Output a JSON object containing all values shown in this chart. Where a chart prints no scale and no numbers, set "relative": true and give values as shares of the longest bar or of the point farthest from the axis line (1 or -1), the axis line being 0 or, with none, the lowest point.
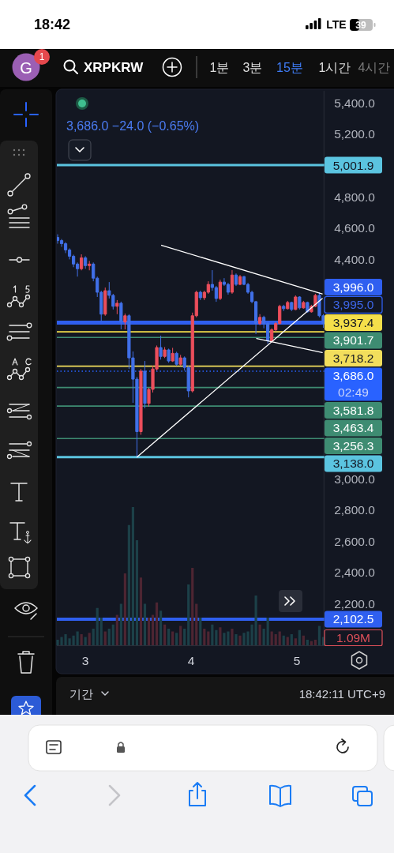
{
  "chart_data": [
    {
      "type": "candlestick",
      "title": "XRPKRW",
      "subtitle": "3,686.0 −24.0 (−0.65%)",
      "x": [
        2.7375,
        2.775,
        2.8125,
        2.85,
        2.8875,
        2.925,
        2.9625,
        3.0,
        3.0375,
        3.075,
        3.1125,
        3.15,
        3.1875,
        3.225,
        3.2625,
        3.3,
        3.3375,
        3.375,
        3.4125,
        3.45,
        3.4875,
        3.525,
        3.5625,
        3.6,
        3.6375,
        3.675,
        3.7125,
        3.75,
        3.7875,
        3.825,
        3.8625,
        3.9,
        3.9375,
        3.975,
        4.0125,
        4.05,
        4.0875,
        4.125,
        4.1625,
        4.2,
        4.2375,
        4.275,
        4.3125,
        4.35,
        4.3875,
        4.425,
        4.4625,
        4.5,
        4.5375,
        4.575,
        4.6125,
        4.65,
        4.6875,
        4.725,
        4.7625,
        4.8,
        4.8375,
        4.875,
        4.9125,
        4.95,
        4.9875,
        5.025,
        5.0625,
        5.1,
        5.1375,
        5.175,
        5.2125,
        5.25
      ],
      "ohlc": [
        [
          4540,
          4560,
          4500,
          4520
        ],
        [
          4520,
          4530,
          4480,
          4500
        ],
        [
          4500,
          4510,
          4440,
          4460
        ],
        [
          4460,
          4470,
          4400,
          4420
        ],
        [
          4420,
          4430,
          4350,
          4370
        ],
        [
          4370,
          4380,
          4290,
          4340
        ],
        [
          4340,
          4432,
          4330,
          4410
        ],
        [
          4410,
          4420,
          4340,
          4360
        ],
        [
          4360,
          4390,
          4330,
          4370
        ],
        [
          4370,
          4380,
          4260,
          4280
        ],
        [
          4280,
          4290,
          4160,
          4190
        ],
        [
          4190,
          4200,
          4003,
          4050
        ],
        [
          4050,
          4220,
          4040,
          4200
        ],
        [
          4200,
          4255,
          4150,
          4170
        ],
        [
          4170,
          4180,
          4080,
          4100
        ],
        [
          4100,
          4140,
          4050,
          4120
        ],
        [
          4120,
          4130,
          3953,
          4000
        ],
        [
          4000,
          4054,
          3953,
          4040
        ],
        [
          4040,
          4050,
          3700,
          3771
        ],
        [
          3771,
          3812,
          3484,
          3635
        ],
        [
          3635,
          3650,
          3138,
          3300
        ],
        [
          3300,
          3700,
          3280,
          3686
        ],
        [
          3686,
          3751,
          3449,
          3480
        ],
        [
          3480,
          3580,
          3460,
          3570
        ],
        [
          3570,
          3721,
          3550,
          3700
        ],
        [
          3700,
          3850,
          3690,
          3837
        ],
        [
          3837,
          3913,
          3760,
          3780
        ],
        [
          3780,
          3840,
          3770,
          3822
        ],
        [
          3822,
          3830,
          3740,
          3751
        ],
        [
          3751,
          3835,
          3745,
          3800
        ],
        [
          3800,
          3810,
          3720,
          3730
        ],
        [
          3730,
          3790,
          3720,
          3771
        ],
        [
          3771,
          3780,
          3690,
          3710
        ],
        [
          3710,
          3720,
          3519,
          3560
        ],
        [
          3560,
          4060,
          3550,
          4040
        ],
        [
          4040,
          4200,
          4030,
          4190
        ],
        [
          4190,
          4200,
          4140,
          4155
        ],
        [
          4155,
          4200,
          4140,
          4190
        ],
        [
          4190,
          4260,
          4180,
          4240
        ],
        [
          4240,
          4331,
          4200,
          4220
        ],
        [
          4220,
          4230,
          4129,
          4150
        ],
        [
          4150,
          4270,
          4140,
          4255
        ],
        [
          4255,
          4280,
          4230,
          4240
        ],
        [
          4240,
          4250,
          4175,
          4190
        ],
        [
          4190,
          4331,
          4180,
          4300
        ],
        [
          4300,
          4310,
          4230,
          4240
        ],
        [
          4240,
          4300,
          4235,
          4290
        ],
        [
          4290,
          4295,
          4235,
          4240
        ],
        [
          4240,
          4250,
          4180,
          4190
        ],
        [
          4190,
          4200,
          4120,
          4130
        ],
        [
          4130,
          4135,
          3923,
          3990
        ],
        [
          3990,
          4050,
          3980,
          4030
        ],
        [
          4030,
          4040,
          3960,
          3990
        ],
        [
          3990,
          4000,
          3862,
          3880
        ],
        [
          3880,
          3960,
          3870,
          3950
        ],
        [
          3950,
          4000,
          3940,
          3990
        ],
        [
          3990,
          4110,
          3985,
          4100
        ],
        [
          4100,
          4110,
          4070,
          4085
        ],
        [
          4085,
          4135,
          4080,
          4125
        ],
        [
          4125,
          4130,
          4070,
          4080
        ],
        [
          4080,
          4170,
          4075,
          4160
        ],
        [
          4160,
          4165,
          4080,
          4090
        ],
        [
          4090,
          4135,
          4085,
          4125
        ],
        [
          4125,
          4130,
          4060,
          4065
        ],
        [
          4065,
          4110,
          4060,
          4100
        ],
        [
          4100,
          4180,
          4095,
          4170
        ],
        [
          4170,
          4190,
          4030,
          4040
        ],
        [
          4040,
          4050,
          3963,
          3990
        ]
      ],
      "colors": [
        "#4170e8",
        "#4170e8",
        "#4170e8",
        "#4170e8",
        "#4170e8",
        "#4170e8",
        "#ec4e5c",
        "#4170e8",
        "#ec4e5c",
        "#4170e8",
        "#4170e8",
        "#4170e8",
        "#ec4e5c",
        "#4170e8",
        "#4170e8",
        "#ec4e5c",
        "#4170e8",
        "#ec4e5c",
        "#4170e8",
        "#4170e8",
        "#4170e8",
        "#ec4e5c",
        "#4170e8",
        "#ec4e5c",
        "#ec4e5c",
        "#ec4e5c",
        "#4170e8",
        "#ec4e5c",
        "#4170e8",
        "#ec4e5c",
        "#4170e8",
        "#ec4e5c",
        "#4170e8",
        "#4170e8",
        "#ec4e5c",
        "#ec4e5c",
        "#4170e8",
        "#ec4e5c",
        "#ec4e5c",
        "#4170e8",
        "#4170e8",
        "#ec4e5c",
        "#4170e8",
        "#4170e8",
        "#ec4e5c",
        "#4170e8",
        "#ec4e5c",
        "#4170e8",
        "#4170e8",
        "#4170e8",
        "#4170e8",
        "#ec4e5c",
        "#4170e8",
        "#4170e8",
        "#ec4e5c",
        "#ec4e5c",
        "#ec4e5c",
        "#4170e8",
        "#ec4e5c",
        "#4170e8",
        "#ec4e5c",
        "#4170e8",
        "#ec4e5c",
        "#4170e8",
        "#ec4e5c",
        "#ec4e5c",
        "#4170e8",
        "#4170e8"
      ],
      "series": [
        {
          "type": "line",
          "color": "#ffffff",
          "x": [
            3.72,
            5.24
          ],
          "values": [
            4490,
            4180
          ]
        },
        {
          "type": "line",
          "color": "#ffffff",
          "x": [
            3.4875,
            5.24
          ],
          "values": [
            3138,
            4150
          ]
        },
        {
          "type": "line",
          "color": "#ffffff",
          "x": [
            4.62,
            5.24
          ],
          "values": [
            3895,
            3805
          ]
        }
      ],
      "xlim": [
        2.73,
        5.26
      ],
      "xticks": [
        3,
        4,
        5
      ],
      "ylim": [
        1936,
        5476
      ],
      "yticks": [
        {
          "value": 5400,
          "label": "5,400.0"
        },
        {
          "value": 5200,
          "label": "5,200.0"
        },
        {
          "value": 4800,
          "label": "4,800.0"
        },
        {
          "value": 4600,
          "label": "4,600.0"
        },
        {
          "value": 4400,
          "label": "4,400.0"
        },
        {
          "value": 3000,
          "label": "3,000.0"
        },
        {
          "value": 2800,
          "label": "2,800.0"
        },
        {
          "value": 2600,
          "label": "2,600.0"
        },
        {
          "value": 2400,
          "label": "2,400.0"
        },
        {
          "value": 2200,
          "label": "2,200.0"
        }
      ],
      "ref_lines": [
        {
          "axis": "y",
          "value": 5001.9,
          "label": "5,001.9",
          "color": "#5bc4e0"
        },
        {
          "axis": "y",
          "value": 3996.0,
          "label": "3,996.0",
          "color": "#2f5ff0"
        },
        {
          "axis": "y",
          "value": 3937.4,
          "label": "3,937.4",
          "color": "#f5df4a"
        },
        {
          "axis": "y",
          "value": 3901.7,
          "label": "3,901.7",
          "color": "#3e8c72"
        },
        {
          "axis": "y",
          "value": 3718.2,
          "label": "3,718.2",
          "color": "#f2de5c"
        },
        {
          "axis": "y",
          "value": 3686.0,
          "label": "3,686.0",
          "color": "#2962ff",
          "line_style": "dotted"
        },
        {
          "axis": "y",
          "value": 3581.8,
          "label": "3,581.8",
          "color": "#3e8c72"
        },
        {
          "axis": "y",
          "value": 3463.4,
          "label": "3,463.4",
          "color": "#3e8c72"
        },
        {
          "axis": "y",
          "value": 3256.3,
          "label": "3,256.3",
          "color": "#3e8c72"
        },
        {
          "axis": "y",
          "value": 3138.0,
          "label": "3,138.0",
          "color": "#5bc4e0"
        },
        {
          "axis": "y",
          "value": 2102.5,
          "label": "2,102.5",
          "color": "#2f5ff0"
        }
      ],
      "annotations": [
        "18:42",
        "LTE",
        "39",
        "G",
        "1",
        "1분",
        "3분",
        "15분",
        "1시간",
        "4시간",
        "기간",
        "18:42:11 UTC+9",
        "3,995.0",
        "02:49"
      ]
    },
    {
      "type": "bar",
      "relative": true,
      "x": [
        2.7375,
        2.775,
        2.8125,
        2.85,
        2.8875,
        2.925,
        2.9625,
        3.0,
        3.0375,
        3.075,
        3.1125,
        3.15,
        3.1875,
        3.225,
        3.2625,
        3.3,
        3.3375,
        3.375,
        3.4125,
        3.45,
        3.4875,
        3.525,
        3.5625,
        3.6,
        3.6375,
        3.675,
        3.7125,
        3.75,
        3.7875,
        3.825,
        3.8625,
        3.9,
        3.9375,
        3.975,
        4.0125,
        4.05,
        4.0875,
        4.125,
        4.1625,
        4.2,
        4.2375,
        4.275,
        4.3125,
        4.35,
        4.3875,
        4.425,
        4.4625,
        4.5,
        4.5375,
        4.575,
        4.6125,
        4.65,
        4.6875,
        4.725,
        4.7625,
        4.8,
        4.8375,
        4.875,
        4.9125,
        4.95,
        4.9875,
        5.025,
        5.0625,
        5.1,
        5.1375,
        5.175,
        5.2125,
        5.25
      ],
      "values": [
        0.04,
        0.06,
        0.08,
        0.05,
        0.07,
        0.1,
        0.08,
        0.06,
        0.09,
        0.12,
        0.27,
        0.2,
        0.1,
        0.12,
        0.15,
        0.22,
        0.3,
        0.52,
        0.87,
        1.0,
        0.76,
        0.49,
        0.3,
        0.2,
        0.22,
        0.31,
        0.25,
        0.15,
        0.12,
        0.1,
        0.09,
        0.14,
        0.12,
        0.44,
        0.56,
        0.3,
        0.2,
        0.12,
        0.1,
        0.15,
        0.11,
        0.13,
        0.09,
        0.1,
        0.12,
        0.08,
        0.07,
        0.09,
        0.1,
        0.15,
        0.36,
        0.15,
        0.12,
        0.2,
        0.1,
        0.08,
        0.1,
        0.07,
        0.06,
        0.08,
        0.05,
        0.11,
        0.07,
        0.04,
        0.03,
        0.04,
        0.14,
        0.06
      ],
      "colors": [
        "#1c4048",
        "#1c4048",
        "#1c4048",
        "#1c4048",
        "#1c4048",
        "#1c4048",
        "#4d2532",
        "#1c4048",
        "#4d2532",
        "#1c4048",
        "#1c4048",
        "#1c4048",
        "#4d2532",
        "#1c4048",
        "#1c4048",
        "#4d2532",
        "#1c4048",
        "#4d2532",
        "#1c4048",
        "#1c4048",
        "#1c4048",
        "#4d2532",
        "#1c4048",
        "#4d2532",
        "#4d2532",
        "#4d2532",
        "#1c4048",
        "#4d2532",
        "#1c4048",
        "#4d2532",
        "#1c4048",
        "#4d2532",
        "#1c4048",
        "#1c4048",
        "#4d2532",
        "#4d2532",
        "#1c4048",
        "#4d2532",
        "#4d2532",
        "#1c4048",
        "#1c4048",
        "#4d2532",
        "#1c4048",
        "#1c4048",
        "#4d2532",
        "#1c4048",
        "#4d2532",
        "#1c4048",
        "#1c4048",
        "#1c4048",
        "#1c4048",
        "#4d2532",
        "#1c4048",
        "#1c4048",
        "#4d2532",
        "#4d2532",
        "#4d2532",
        "#1c4048",
        "#4d2532",
        "#1c4048",
        "#4d2532",
        "#1c4048",
        "#4d2532",
        "#1c4048",
        "#4d2532",
        "#4d2532",
        "#1c4048",
        "#1c4048"
      ],
      "xlim": [
        2.73,
        5.26
      ],
      "tick_labels": false,
      "annotations": [
        "1.09M"
      ]
    }
  ]
}
